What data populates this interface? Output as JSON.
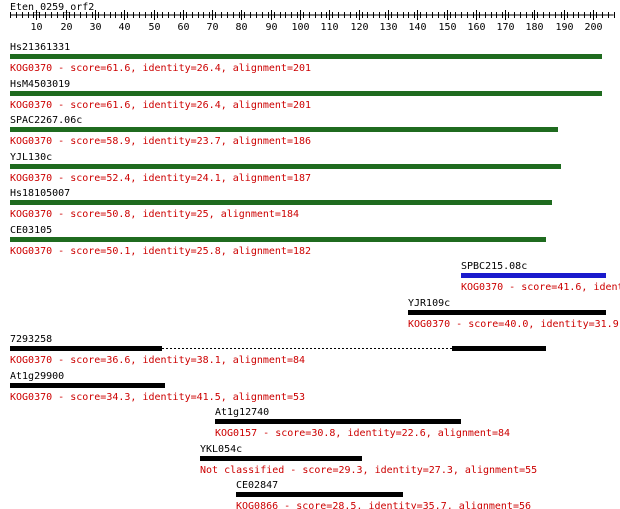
{
  "query": {
    "name": "Eten_0259_orf2",
    "axis_ticks": [
      10,
      20,
      30,
      40,
      50,
      60,
      70,
      80,
      90,
      100,
      110,
      120,
      130,
      140,
      150,
      160,
      170,
      180,
      190,
      200
    ]
  },
  "colors": {
    "text_red": "#cc0000",
    "bar_green": "#1f6b1f",
    "bar_blue": "#1a1acc",
    "bar_black": "#000000"
  },
  "hits": [
    {
      "name": "Hs21361331",
      "desc": "KOG0370 - score=61.6, identity=26.4, alignment=201",
      "color": "green",
      "segments": [
        [
          1,
          203
        ]
      ]
    },
    {
      "name": "HsM4503019",
      "desc": "KOG0370 - score=61.6, identity=26.4, alignment=201",
      "color": "green",
      "segments": [
        [
          1,
          203
        ]
      ]
    },
    {
      "name": "SPAC2267.06c",
      "desc": "KOG0370 - score=58.9, identity=23.7, alignment=186",
      "color": "green",
      "segments": [
        [
          1,
          188
        ]
      ]
    },
    {
      "name": "YJL130c",
      "desc": "KOG0370 - score=52.4, identity=24.1, alignment=187",
      "color": "green",
      "segments": [
        [
          1,
          189
        ]
      ]
    },
    {
      "name": "Hs18105007",
      "desc": "KOG0370 - score=50.8, identity=25, alignment=184",
      "color": "green",
      "segments": [
        [
          1,
          186
        ]
      ]
    },
    {
      "name": "CE03105",
      "desc": "KOG0370 - score=50.1, identity=25.8, alignment=182",
      "color": "green",
      "segments": [
        [
          1,
          184
        ]
      ]
    },
    {
      "name": "SPBC215.08c",
      "desc": "KOG0370 - score=41.6, ident",
      "color": "blue",
      "segments": [
        [
          155,
          206
        ]
      ]
    },
    {
      "name": "YJR109c",
      "desc": "KOG0370 - score=40.0, identity=31.9,",
      "color": "black",
      "segments": [
        [
          137,
          206
        ]
      ]
    },
    {
      "name": "7293258",
      "desc": "KOG0370 - score=36.6, identity=38.1, alignment=84",
      "color": "black",
      "segments": [
        [
          1,
          53
        ],
        [
          152,
          184
        ]
      ],
      "gap": [
        53,
        152
      ]
    },
    {
      "name": "At1g29900",
      "desc": "KOG0370 - score=34.3, identity=41.5, alignment=53",
      "color": "black",
      "segments": [
        [
          1,
          54
        ]
      ]
    },
    {
      "name": "At1g12740",
      "desc": "KOG0157 - score=30.8, identity=22.6, alignment=84",
      "color": "black",
      "segments": [
        [
          71,
          155
        ]
      ]
    },
    {
      "name": "YKL054c",
      "desc": "Not classified - score=29.3, identity=27.3, alignment=55",
      "color": "black",
      "segments": [
        [
          66,
          121
        ]
      ]
    },
    {
      "name": "CE02847",
      "desc": "KOG0866 - score=28.5, identity=35.7, alignment=56",
      "color": "black",
      "segments": [
        [
          78,
          135
        ]
      ]
    }
  ]
}
